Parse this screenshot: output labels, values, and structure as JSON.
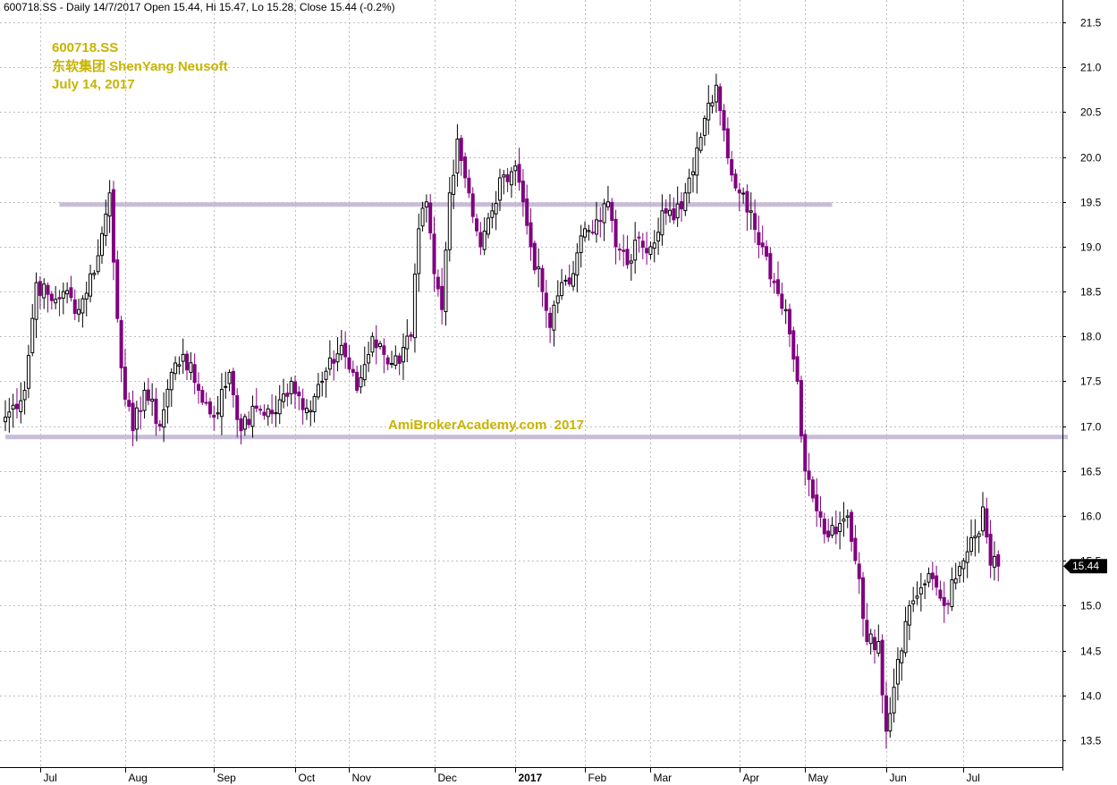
{
  "chart_data": {
    "type": "candlestick",
    "header": "600718.SS - Daily 14/7/2017 Open 15.44, Hi 15.47, Lo 15.28, Close 15.44 (-0.2%)",
    "annotations": [
      "600718.SS",
      "东软集团 ShenYang Neusoft",
      "July 14, 2017"
    ],
    "watermark": "AmiBrokerAcademy.com  2017",
    "ylim": [
      13.2,
      21.75
    ],
    "y_ticks": [
      13.5,
      14.0,
      14.5,
      15.0,
      15.5,
      16.0,
      16.5,
      17.0,
      17.5,
      18.0,
      18.5,
      19.0,
      19.5,
      20.0,
      20.5,
      21.0,
      21.5
    ],
    "y_tick_labels": [
      "13.5",
      "14.0",
      "14.5",
      "15.0",
      "15.5",
      "16.0",
      "16.5",
      "17.0",
      "17.5",
      "18.0",
      "18.5",
      "19.0",
      "19.5",
      "20.0",
      "20.5",
      "21.0",
      "21.5"
    ],
    "x_ticks": [
      {
        "label": "Jul",
        "index": 9
      },
      {
        "label": "Aug",
        "index": 31
      },
      {
        "label": "Sep",
        "index": 54
      },
      {
        "label": "Oct",
        "index": 75
      },
      {
        "label": "Nov",
        "index": 89
      },
      {
        "label": "Dec",
        "index": 111
      },
      {
        "label": "2017",
        "index": 132,
        "bold": true
      },
      {
        "label": "Feb",
        "index": 150
      },
      {
        "label": "Mar",
        "index": 167
      },
      {
        "label": "Apr",
        "index": 190
      },
      {
        "label": "May",
        "index": 207
      },
      {
        "label": "Jun",
        "index": 228
      },
      {
        "label": "Jul",
        "index": 248
      }
    ],
    "horizontal_levels": [
      {
        "value": 19.47,
        "from_index": 14,
        "to_index": 214
      },
      {
        "value": 16.88,
        "from_index": 0,
        "to_index": 275
      }
    ],
    "last_price_label": "15.44",
    "last_price": 15.44,
    "up_color": "#000000",
    "down_color": "#800080",
    "background": "#ffffff",
    "keypoints": [
      [
        0,
        17.1
      ],
      [
        5,
        17.4
      ],
      [
        8,
        18.6
      ],
      [
        12,
        18.4
      ],
      [
        15,
        18.5
      ],
      [
        19,
        18.3
      ],
      [
        24,
        18.9
      ],
      [
        27,
        19.6
      ],
      [
        29,
        18.2
      ],
      [
        31,
        17.3
      ],
      [
        33,
        16.95
      ],
      [
        36,
        17.4
      ],
      [
        40,
        17.0
      ],
      [
        43,
        17.6
      ],
      [
        46,
        17.8
      ],
      [
        50,
        17.4
      ],
      [
        54,
        17.1
      ],
      [
        58,
        17.6
      ],
      [
        61,
        16.95
      ],
      [
        65,
        17.2
      ],
      [
        70,
        17.15
      ],
      [
        74,
        17.5
      ],
      [
        78,
        17.2
      ],
      [
        82,
        17.5
      ],
      [
        87,
        17.9
      ],
      [
        91,
        17.4
      ],
      [
        95,
        18.0
      ],
      [
        98,
        17.8
      ],
      [
        102,
        17.7
      ],
      [
        105,
        18.0
      ],
      [
        107,
        19.2
      ],
      [
        109,
        19.5
      ],
      [
        111,
        18.7
      ],
      [
        113,
        18.3
      ],
      [
        115,
        19.6
      ],
      [
        117,
        20.2
      ],
      [
        120,
        19.6
      ],
      [
        123,
        19.0
      ],
      [
        126,
        19.4
      ],
      [
        129,
        19.8
      ],
      [
        132,
        19.9
      ],
      [
        134,
        19.5
      ],
      [
        136,
        19.0
      ],
      [
        139,
        18.5
      ],
      [
        141,
        18.1
      ],
      [
        144,
        18.6
      ],
      [
        147,
        18.7
      ],
      [
        150,
        19.2
      ],
      [
        153,
        19.3
      ],
      [
        156,
        19.5
      ],
      [
        158,
        19.0
      ],
      [
        161,
        18.8
      ],
      [
        164,
        19.1
      ],
      [
        167,
        19.0
      ],
      [
        170,
        19.4
      ],
      [
        173,
        19.3
      ],
      [
        176,
        19.6
      ],
      [
        179,
        20.1
      ],
      [
        182,
        20.6
      ],
      [
        184,
        20.8
      ],
      [
        186,
        20.3
      ],
      [
        188,
        19.8
      ],
      [
        190,
        19.6
      ],
      [
        193,
        19.4
      ],
      [
        196,
        19.0
      ],
      [
        199,
        18.6
      ],
      [
        202,
        18.3
      ],
      [
        205,
        17.5
      ],
      [
        207,
        16.5
      ],
      [
        209,
        16.2
      ],
      [
        212,
        15.8
      ],
      [
        215,
        15.8
      ],
      [
        218,
        16.0
      ],
      [
        221,
        15.3
      ],
      [
        223,
        14.6
      ],
      [
        226,
        14.6
      ],
      [
        228,
        13.6
      ],
      [
        231,
        14.4
      ],
      [
        234,
        15.0
      ],
      [
        237,
        15.2
      ],
      [
        240,
        15.3
      ],
      [
        243,
        15.0
      ],
      [
        246,
        15.3
      ],
      [
        249,
        15.6
      ],
      [
        252,
        15.8
      ],
      [
        253,
        16.1
      ],
      [
        255,
        15.45
      ],
      [
        257,
        15.44
      ]
    ]
  }
}
